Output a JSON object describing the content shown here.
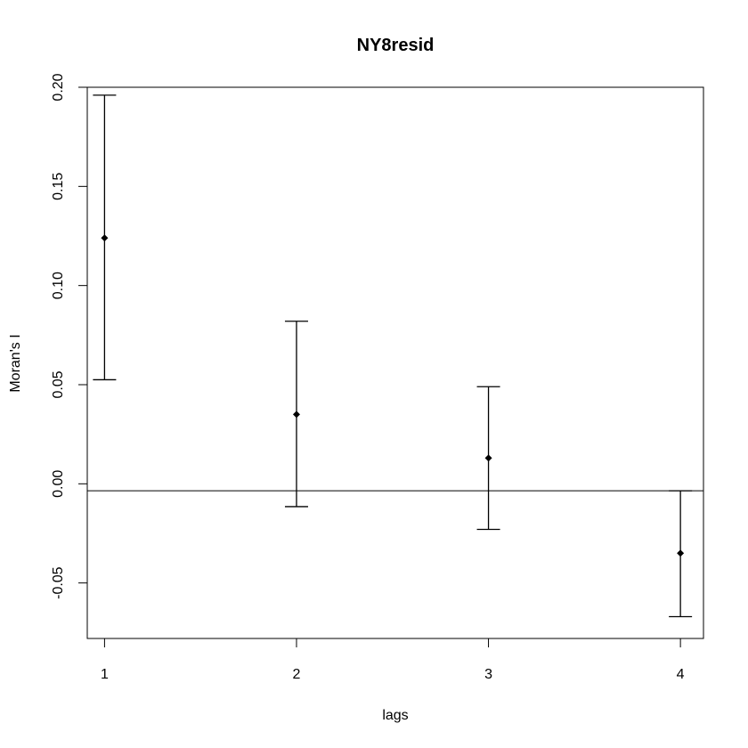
{
  "chart_data": {
    "type": "scatter",
    "title": "NY8resid",
    "xlabel": "lags",
    "ylabel": "Moran's  I",
    "xlim": [
      0.91,
      4.12
    ],
    "ylim": [
      -0.078,
      0.2
    ],
    "x_ticks": [
      "1",
      "2",
      "3",
      "4"
    ],
    "y_ticks": [
      "-0.05",
      "0.00",
      "0.05",
      "0.10",
      "0.15",
      "0.20"
    ],
    "reference_line_y": -0.0035,
    "series": [
      {
        "x": [
          1,
          2,
          3,
          4
        ],
        "y": [
          0.124,
          0.035,
          0.013,
          -0.035
        ],
        "lower": [
          0.0525,
          -0.0115,
          -0.023,
          -0.067
        ],
        "upper": [
          0.196,
          0.082,
          0.049,
          -0.0035
        ]
      }
    ],
    "grid": false,
    "legend": "none"
  }
}
